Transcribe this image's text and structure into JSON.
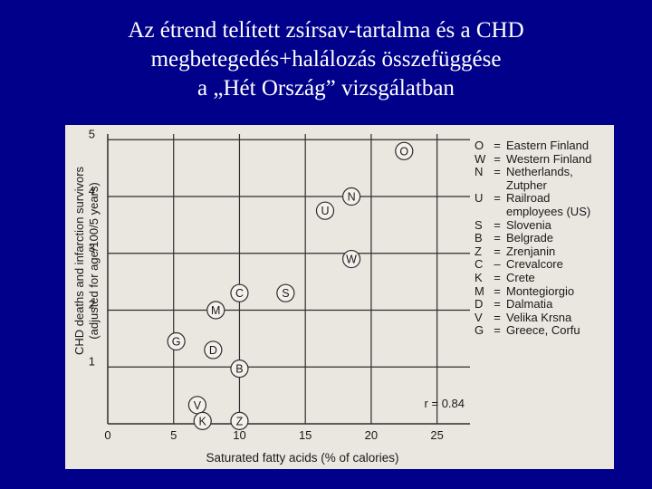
{
  "title_lines": [
    "Az étrend telített zsírsav-tartalma és a CHD",
    "megbetegedés+halálozás összefüggése",
    "a „Hét Ország” vizsgálatban"
  ],
  "legend": [
    {
      "code": "O",
      "sep": "=",
      "lines": [
        "Eastern Finland"
      ]
    },
    {
      "code": "W",
      "sep": "=",
      "lines": [
        "Western Finland"
      ]
    },
    {
      "code": "N",
      "sep": "=",
      "lines": [
        "Netherlands,",
        "Zutpher"
      ]
    },
    {
      "code": "U",
      "sep": "=",
      "lines": [
        "Railroad",
        "employees (US)"
      ]
    },
    {
      "code": "S",
      "sep": "=",
      "lines": [
        "Slovenia"
      ]
    },
    {
      "code": "B",
      "sep": "=",
      "lines": [
        "Belgrade"
      ]
    },
    {
      "code": "Z",
      "sep": "=",
      "lines": [
        "Zrenjanin"
      ]
    },
    {
      "code": "C",
      "sep": "–",
      "lines": [
        "Crevalcore"
      ]
    },
    {
      "code": "K",
      "sep": "=",
      "lines": [
        "Crete"
      ]
    },
    {
      "code": "M",
      "sep": "=",
      "lines": [
        "Montegiorgio"
      ]
    },
    {
      "code": "D",
      "sep": "=",
      "lines": [
        "Dalmatia"
      ]
    },
    {
      "code": "V",
      "sep": "=",
      "lines": [
        "Velika Krsna"
      ]
    },
    {
      "code": "G",
      "sep": "=",
      "lines": [
        "Greece, Corfu"
      ]
    }
  ],
  "colors": {
    "background": "#00008b",
    "title": "#ffffff",
    "panel": "#eae6e0",
    "grid": "#2e2e2e",
    "text": "#1a1a1a"
  },
  "chart_data": {
    "type": "scatter",
    "title": "",
    "xlabel": "Saturated fatty acids (% of calories)",
    "ylabel": [
      "CHD deaths and infarction survivors",
      "(adjusted for age/100/5 years)"
    ],
    "xlim": [
      0,
      27.5
    ],
    "ylim": [
      0,
      5.1
    ],
    "xticks": [
      0,
      5,
      10,
      15,
      20,
      25
    ],
    "yticks": [
      1,
      2,
      3,
      4,
      5
    ],
    "grid": true,
    "legend_position": "right",
    "annotation": "r = 0.84",
    "points": [
      {
        "label": "O",
        "x": 22.5,
        "y": 4.8
      },
      {
        "label": "N",
        "x": 18.5,
        "y": 4.0
      },
      {
        "label": "U",
        "x": 16.5,
        "y": 3.75
      },
      {
        "label": "W",
        "x": 18.5,
        "y": 2.9
      },
      {
        "label": "S",
        "x": 13.5,
        "y": 2.3
      },
      {
        "label": "C",
        "x": 10.0,
        "y": 2.3
      },
      {
        "label": "M",
        "x": 8.2,
        "y": 2.0
      },
      {
        "label": "G",
        "x": 5.2,
        "y": 1.45
      },
      {
        "label": "D",
        "x": 8.0,
        "y": 1.3
      },
      {
        "label": "B",
        "x": 10.0,
        "y": 0.97
      },
      {
        "label": "V",
        "x": 6.8,
        "y": 0.33
      },
      {
        "label": "K",
        "x": 7.2,
        "y": 0.05
      },
      {
        "label": "Z",
        "x": 10.0,
        "y": 0.05
      }
    ]
  }
}
